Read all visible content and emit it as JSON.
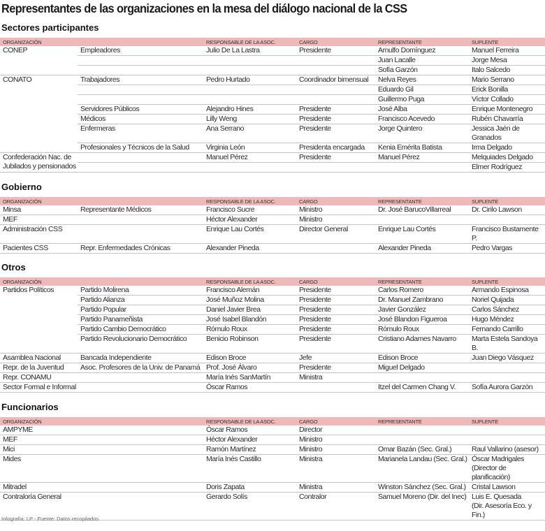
{
  "title": "Representantes de las organizaciones en la mesa del diálogo nacional de la CSS",
  "headers": [
    "ORGANIZACIÓN",
    "",
    "RESPONSABLE DE LA ASOC.",
    "CARGO",
    "REPRESENTANTE",
    "SUPLENTE"
  ],
  "sections": [
    {
      "name": "Sectores participantes",
      "groups": [
        {
          "org": "CONEP",
          "rows": [
            [
              "Empleadores",
              "Julio De La Lastra",
              "Presidente",
              "Arnulfo Domínguez",
              "Manuel Ferreira"
            ],
            [
              "",
              "",
              "",
              "Juan Lacalle",
              "Jorge Mesa"
            ],
            [
              "",
              "",
              "",
              "Sofía  Garzón",
              "Italo Salcedo"
            ]
          ]
        },
        {
          "org": "CONATO",
          "rows": [
            [
              "Trabajadores",
              "Pedro Hurtado",
              "Coordinador bimensual",
              "Nelva Reyes",
              "Mario Serrano"
            ],
            [
              "",
              "",
              "",
              "Eduardo Gil",
              "Erick Bonilla"
            ],
            [
              "",
              "",
              "",
              "Guillermo Puga",
              "Víctor Collado"
            ],
            [
              "Servidores  Públicos",
              "Alejandro Hines",
              "Presidente",
              "José Alba",
              "Enrique Montenegro"
            ],
            [
              "Médicos",
              "Lilly Weng",
              "Presidente",
              "Francisco Acevedo",
              "Rubén Chavarría"
            ],
            [
              "Enfermeras",
              "Ana Serrano",
              "Presidente",
              "Jorge Quintero",
              "Jessica Jaén de Granados"
            ],
            [
              "Profesionales y Técnicos de la Salud",
              "Virginia León",
              "Presidenta encargada",
              "Kenia Emérita Batista",
              "Irma Delgado"
            ]
          ]
        },
        {
          "org": "Confederación Nac. de\nJubilados y pensionados",
          "rows": [
            [
              "",
              "Manuel Pérez",
              "Presidente",
              "Manuel Pérez",
              "Melquiades Delgado"
            ],
            [
              "",
              "",
              "",
              "",
              "Elmer Rodríguez"
            ]
          ]
        }
      ]
    },
    {
      "name": "Gobierno",
      "groups": [
        {
          "org": "Minsa",
          "rows": [
            [
              "Representante Médicos",
              "Francisco Sucre",
              "Ministro",
              "Dr. José BarucoVillarreal",
              "Dr. Cirilo Lawson"
            ]
          ]
        },
        {
          "org": "MEF",
          "rows": [
            [
              "",
              "Héctor Alexander",
              "Ministro",
              "",
              ""
            ]
          ]
        },
        {
          "org": "Administración CSS",
          "rows": [
            [
              "",
              "Enrique Lau Cortés",
              "Director General",
              "Enrique Lau Cortés",
              "Francisco Bustamente P."
            ]
          ]
        },
        {
          "org": "Pacientes CSS",
          "rows": [
            [
              "Repr. Enfermedades Crónicas",
              "Alexander Pineda",
              "",
              "Alexander Pineda",
              "Pedro Vargas"
            ]
          ]
        }
      ]
    },
    {
      "name": "Otros",
      "groups": [
        {
          "org": "Partidos Políticos",
          "rows": [
            [
              "Partido Molirena",
              "Francisco Alemán",
              "Presidente",
              "Carlos Romero",
              "Armando Espinosa"
            ],
            [
              "Partido Alianza",
              "José Muñoz Molina",
              "Presidente",
              "Dr. Manuel Zambrano",
              "Noriel Quijada"
            ],
            [
              "Partido Popular",
              "Daniel Javier Brea",
              "Presidente",
              "Javier González",
              "Carlos Sánchez"
            ],
            [
              "Partido Panameñista",
              "José Isabel Blandón",
              "Presidente",
              "José Blandon Figueroa",
              "Hugo Méndez"
            ],
            [
              "Partido Cambio Democrático",
              "Rómulo Roux",
              "Presidente",
              "Rómulo Roux",
              "Fernando Carrillo"
            ],
            [
              "Partido Revolucionario Democrático",
              "Benicio Robinson",
              "Presidente",
              "Cristiano Adames Navarro",
              "Marta Estela Sandoya B."
            ]
          ]
        },
        {
          "org": "Asamblea Nacional",
          "rows": [
            [
              "Bancada Independiente",
              "Edison Broce",
              "Jefe",
              "Edison Broce",
              "Juan Diego Vásquez"
            ]
          ]
        },
        {
          "org": "Repr. de la Juventud",
          "rows": [
            [
              "Asoc. Profesores de la Univ. de Panamá",
              "Prof. José Álvaro",
              "Presidente",
              "Miguel Delgado",
              ""
            ]
          ]
        },
        {
          "org": "Repr. CONAMU",
          "rows": [
            [
              "",
              "María Inés SanMartín",
              "Ministra",
              "",
              ""
            ]
          ]
        },
        {
          "org": "Sector Formal e Informal",
          "rows": [
            [
              "",
              "Óscar Ramos",
              "",
              "Itzel del Carmen Chang V.",
              "Sofía Aurora Garzón"
            ]
          ]
        }
      ]
    },
    {
      "name": "Funcionarios",
      "groups": [
        {
          "org": "AMPYME",
          "rows": [
            [
              "",
              "Óscar Ramos",
              "Director",
              "",
              ""
            ]
          ]
        },
        {
          "org": "MEF",
          "rows": [
            [
              "",
              "Héctor Alexander",
              "Ministro",
              "",
              ""
            ]
          ]
        },
        {
          "org": "Mici",
          "rows": [
            [
              "",
              "Ramón Martínez",
              "Ministro",
              "Omar Bazán (Sec. Gral.)",
              "Raul Vallarino (asesor)"
            ]
          ]
        },
        {
          "org": "Mides",
          "rows": [
            [
              "",
              "María Inés Castillo",
              "Ministra",
              "Marianela Landau (Sec. Gral.)",
              "Óscar Madrigales\n(Director de planificación)"
            ]
          ]
        },
        {
          "org": "Mitradel",
          "rows": [
            [
              "",
              "Doris Zapata",
              "Ministra",
              "Winston Sánchez (Sec. Gral.)",
              "Cristal Lawson"
            ]
          ]
        },
        {
          "org": "Contraloría General",
          "rows": [
            [
              "",
              "Gerardo Solís",
              "Contralor",
              "Samuel Moreno (Dir. del Inec)",
              "Luis E. Quesada\n(Dir. Asesoría Eco. y Fin.)"
            ]
          ]
        }
      ]
    }
  ],
  "footer": "Infografía: LP - Fuente: Datos recopilados",
  "colors": {
    "header_bg": "#f0b9b9",
    "rule": "#c4c4c4"
  }
}
